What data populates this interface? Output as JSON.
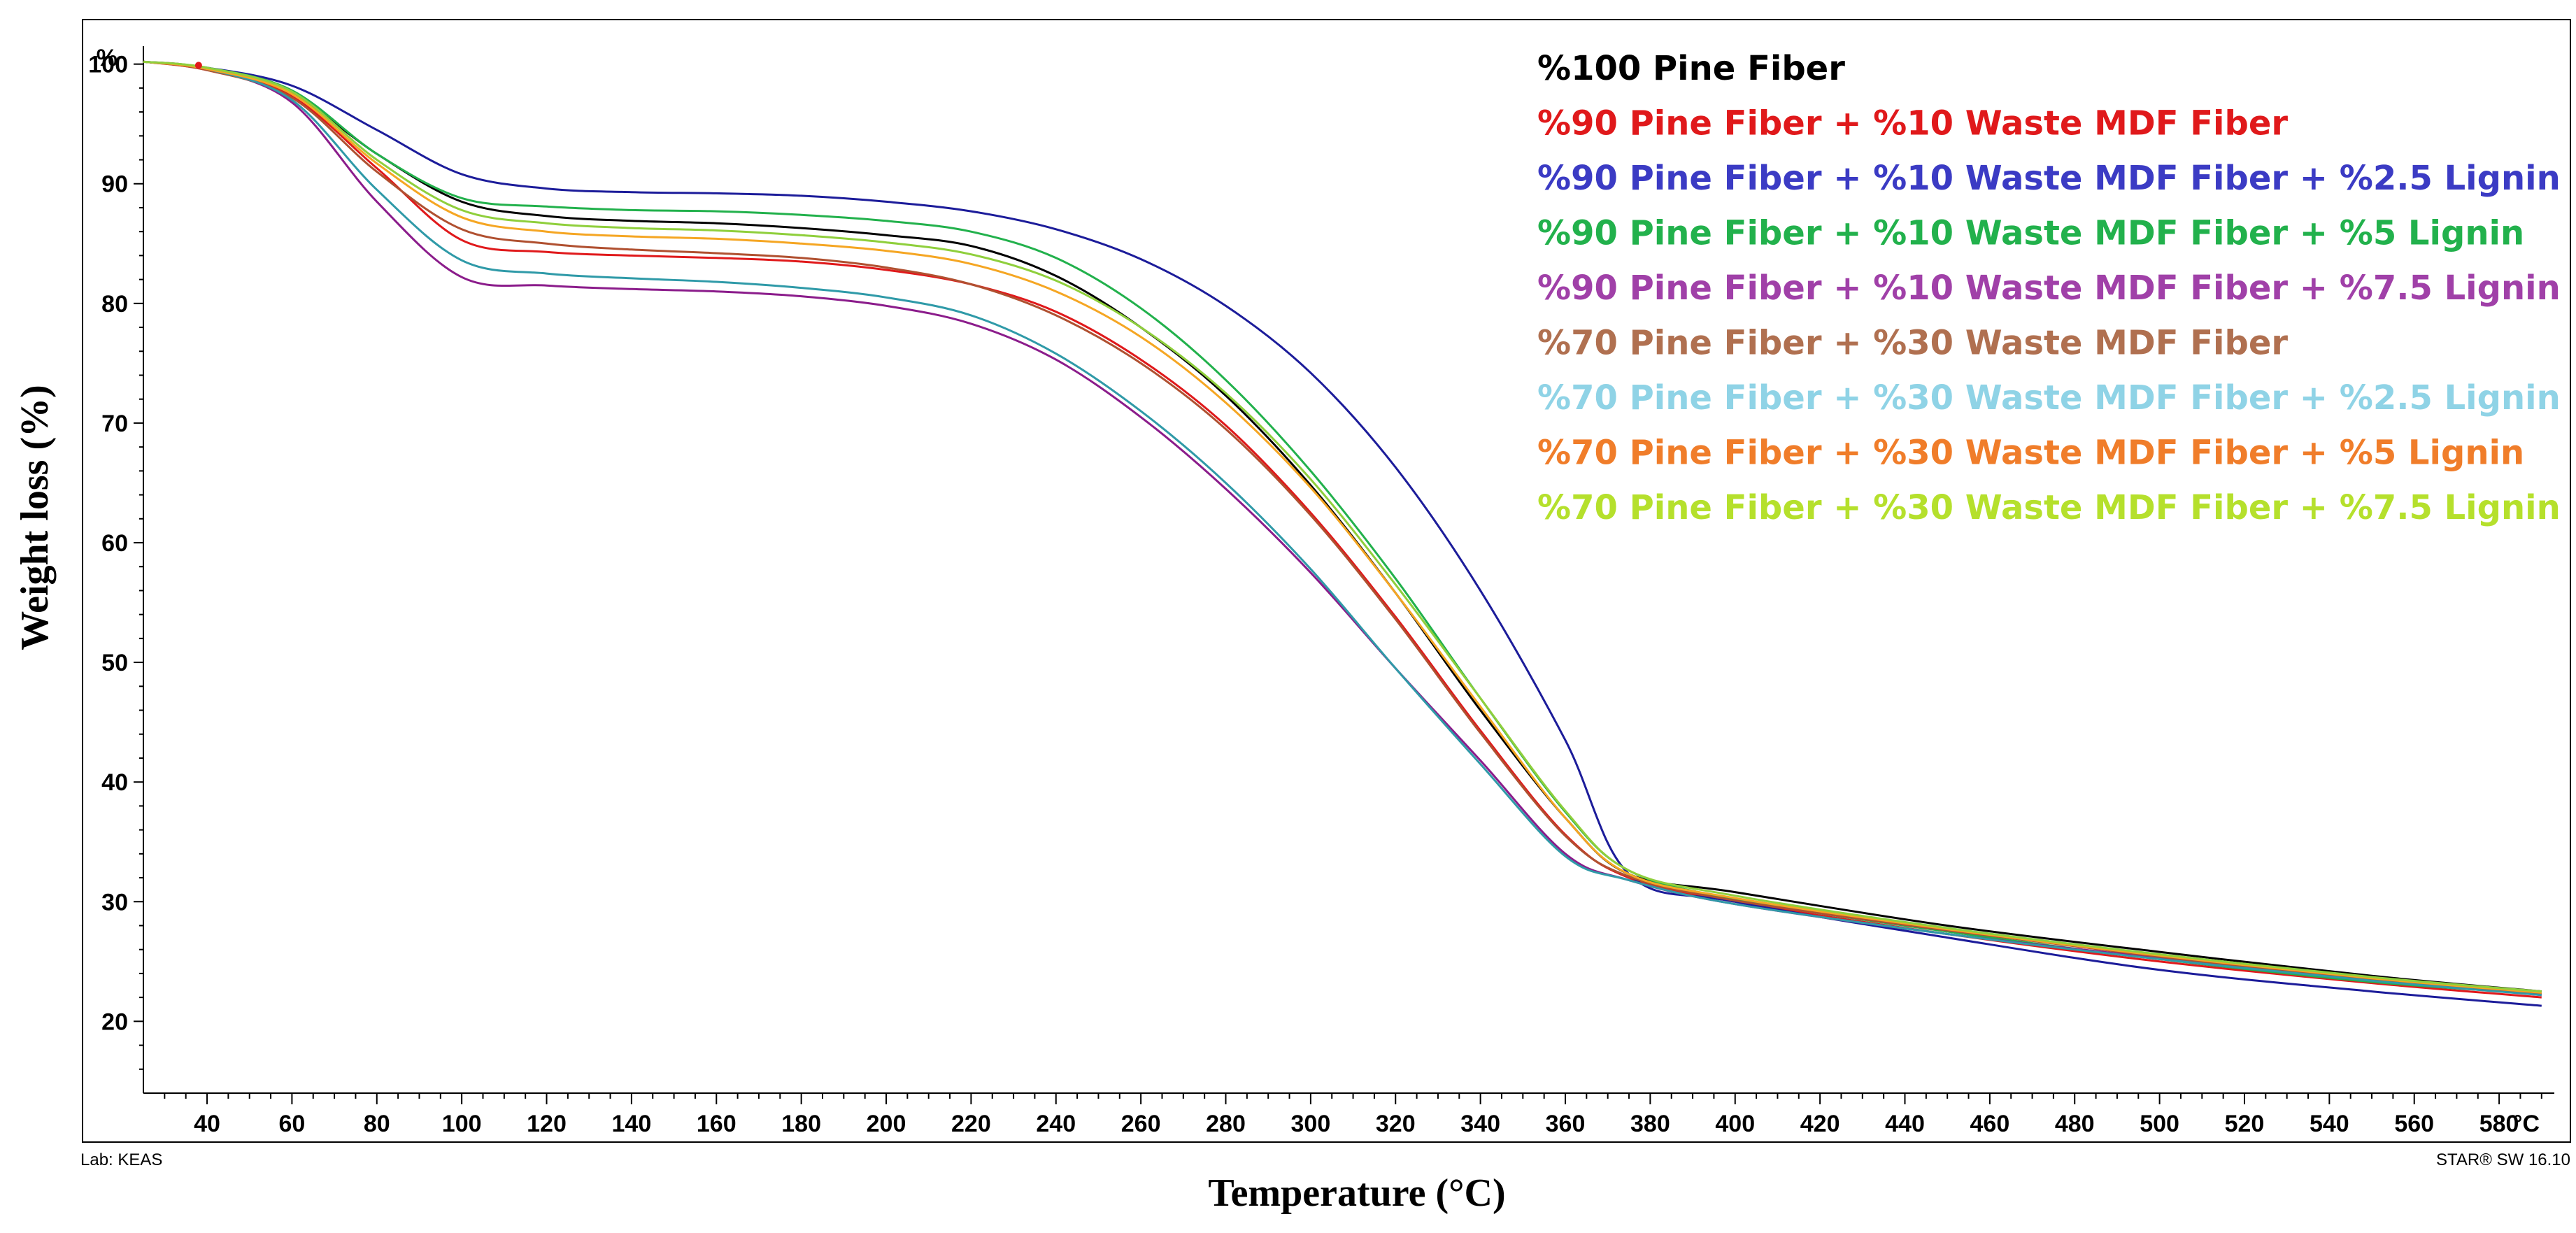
{
  "chart_data": {
    "type": "line",
    "title": "",
    "xlabel": "Temperature (°C)",
    "ylabel": "Weight loss (%)",
    "x_unit": "°C",
    "y_unit": "%",
    "xlim": [
      25,
      593
    ],
    "ylim": [
      14,
      101.5
    ],
    "xticks": [
      40,
      60,
      80,
      100,
      120,
      140,
      160,
      180,
      200,
      220,
      240,
      260,
      280,
      300,
      320,
      340,
      360,
      380,
      400,
      420,
      440,
      460,
      480,
      500,
      520,
      540,
      560,
      580
    ],
    "yticks": [
      20,
      30,
      40,
      50,
      60,
      70,
      80,
      90,
      100
    ],
    "footer_left": "Lab: KEAS",
    "footer_right": "STAR® SW 16.10",
    "legend_position": "top-right",
    "x": [
      25,
      40,
      60,
      80,
      100,
      120,
      140,
      160,
      180,
      200,
      220,
      240,
      260,
      280,
      300,
      320,
      340,
      360,
      375,
      400,
      450,
      500,
      550,
      590
    ],
    "series": [
      {
        "name": "%100 Pine Fiber",
        "color": "#000000",
        "values": [
          100.2,
          99.6,
          97.5,
          92.5,
          88.5,
          87.3,
          86.9,
          86.7,
          86.3,
          85.7,
          84.8,
          82.3,
          78.0,
          72.3,
          64.8,
          55.8,
          46.0,
          37.0,
          32.3,
          30.8,
          28.0,
          25.8,
          23.8,
          22.5
        ]
      },
      {
        "name": "%90 Pine Fiber + %10 Waste MDF Fiber",
        "color": "#e0191b",
        "values": [
          100.2,
          99.5,
          97.3,
          91.3,
          85.3,
          84.3,
          84.0,
          83.8,
          83.5,
          82.8,
          81.6,
          79.3,
          75.3,
          69.8,
          62.5,
          53.8,
          44.3,
          35.6,
          32.0,
          30.0,
          27.3,
          25.0,
          23.2,
          22.0
        ]
      },
      {
        "name": "%90 Pine Fiber + %10 Waste MDF Fiber + %2.5 Lignin",
        "color": "#1c1c9a",
        "values": [
          100.2,
          99.7,
          98.2,
          94.5,
          90.8,
          89.6,
          89.3,
          89.2,
          89.0,
          88.5,
          87.7,
          86.2,
          83.7,
          79.8,
          74.2,
          66.3,
          56.0,
          43.5,
          32.3,
          30.0,
          27.0,
          24.3,
          22.5,
          21.3
        ]
      },
      {
        "name": "%90 Pine Fiber + %10 Waste MDF Fiber + %5 Lignin",
        "color": "#22b14c",
        "values": [
          100.2,
          99.7,
          97.8,
          92.5,
          88.8,
          88.1,
          87.8,
          87.7,
          87.4,
          86.9,
          86.0,
          83.8,
          79.6,
          73.6,
          66.0,
          57.0,
          47.0,
          37.5,
          32.6,
          30.2,
          27.5,
          25.2,
          23.3,
          22.3
        ]
      },
      {
        "name": "%90 Pine Fiber + %10 Waste MDF Fiber + %7.5 Lignin",
        "color": "#8b1c8b",
        "values": [
          100.2,
          99.6,
          96.8,
          88.5,
          82.2,
          81.5,
          81.2,
          81.0,
          80.6,
          79.8,
          78.3,
          75.3,
          70.5,
          64.5,
          57.5,
          49.5,
          41.8,
          34.0,
          31.8,
          29.8,
          27.3,
          25.3,
          23.5,
          22.2
        ]
      },
      {
        "name": "%70 Pine Fiber + %30 Waste MDF Fiber",
        "color": "#b05030",
        "values": [
          100.2,
          99.5,
          97.2,
          91.0,
          86.2,
          85.0,
          84.5,
          84.2,
          83.8,
          83.0,
          81.6,
          79.0,
          75.0,
          69.5,
          62.3,
          53.6,
          44.1,
          35.5,
          32.1,
          30.1,
          27.6,
          25.4,
          23.5,
          22.3
        ]
      },
      {
        "name": "%70 Pine Fiber + %30 Waste MDF Fiber + %2.5 Lignin",
        "color": "#2f9aa8",
        "values": [
          100.2,
          99.6,
          97.0,
          89.5,
          83.6,
          82.5,
          82.1,
          81.8,
          81.3,
          80.5,
          79.0,
          75.8,
          71.0,
          65.0,
          57.8,
          49.5,
          41.5,
          33.8,
          31.8,
          29.8,
          27.3,
          25.2,
          23.4,
          22.2
        ]
      },
      {
        "name": "%70 Pine Fiber + %30 Waste MDF Fiber + %5 Lignin",
        "color": "#f5a623",
        "values": [
          100.2,
          99.6,
          97.5,
          91.7,
          87.2,
          86.0,
          85.6,
          85.4,
          85.0,
          84.4,
          83.3,
          81.0,
          77.2,
          71.7,
          64.6,
          55.8,
          46.3,
          37.0,
          32.3,
          30.3,
          27.7,
          25.5,
          23.6,
          22.4
        ]
      },
      {
        "name": "%70 Pine Fiber + %30 Waste MDF Fiber + %7.5 Lignin",
        "color": "#8fcf3c",
        "values": [
          100.2,
          99.7,
          97.7,
          92.0,
          87.8,
          86.7,
          86.3,
          86.1,
          85.7,
          85.1,
          84.1,
          81.9,
          78.0,
          72.5,
          65.3,
          56.5,
          47.0,
          37.6,
          32.6,
          30.5,
          27.8,
          25.6,
          23.7,
          22.5
        ]
      }
    ],
    "legend_colors": [
      "#000000",
      "#e0191b",
      "#3b3bc4",
      "#22b14c",
      "#a040a8",
      "#b07050",
      "#8fd3e6",
      "#f07d2a",
      "#b5e02c"
    ]
  }
}
